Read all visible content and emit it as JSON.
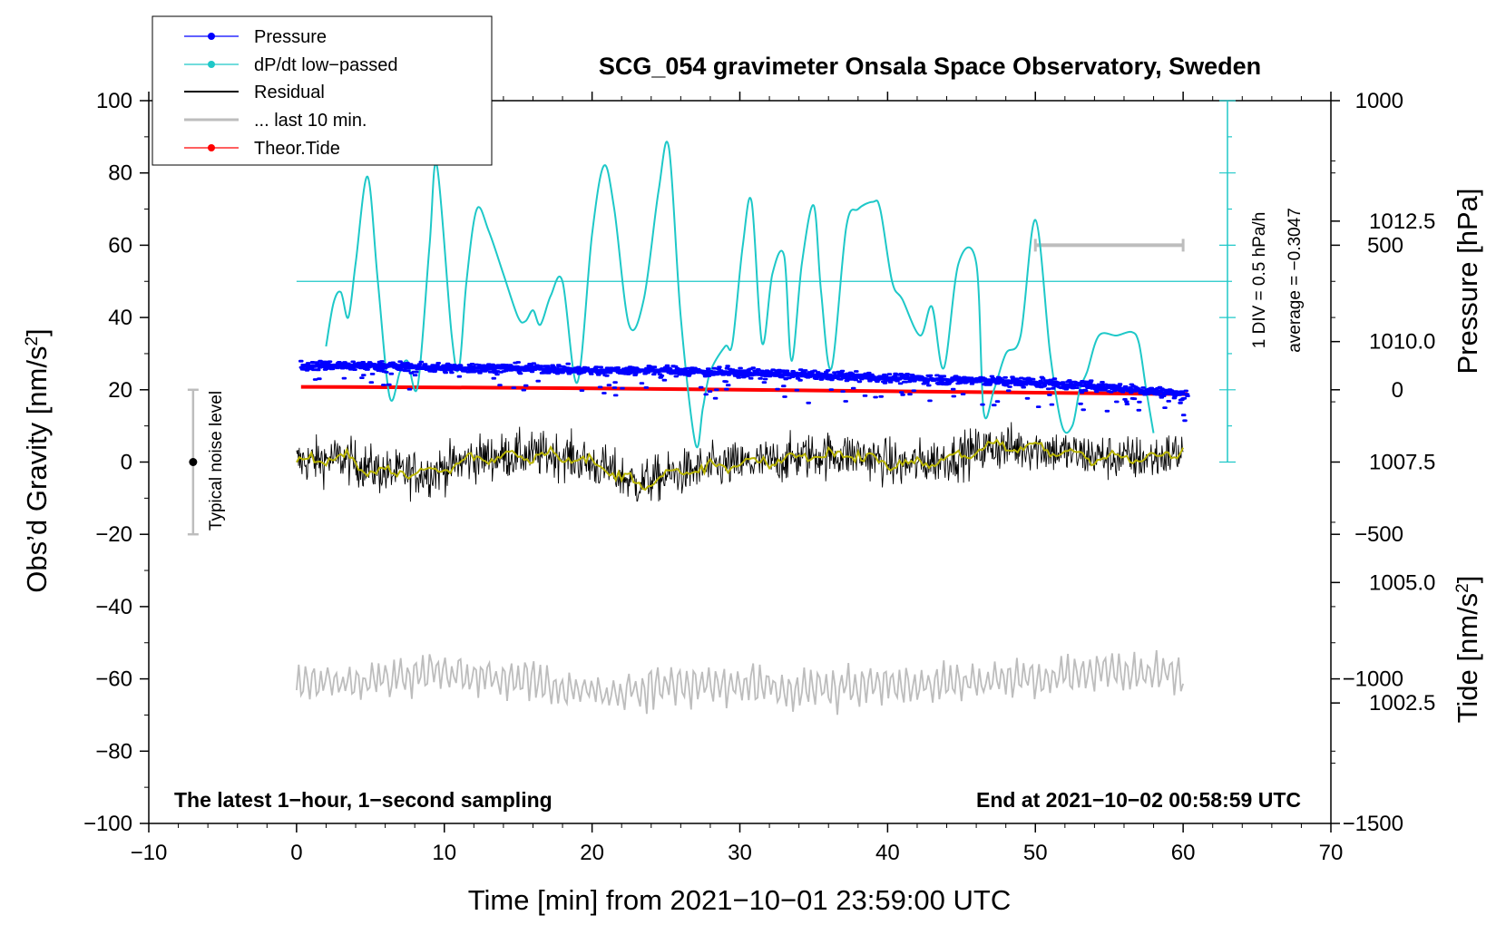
{
  "chart_data": {
    "type": "line",
    "title": "SCG_054 gravimeter Onsala Space Observatory, Sweden",
    "xlabel": "Time [min] from 2021−10−01 23:59:00 UTC",
    "ylabel_left_main": "Obs’d Gravity [nm/s",
    "ylabel_left_sup": "2",
    "ylabel_left_end": "]",
    "ylabel_pressure": "Pressure [hPa]",
    "ylabel_tide_main": "Tide [nm/s",
    "ylabel_tide_sup": "2",
    "ylabel_tide_end": "]",
    "xlim": [
      -10,
      70
    ],
    "ylim": [
      -100,
      100
    ],
    "pressure_lim": [
      1000,
      1015
    ],
    "tide_lim": [
      -1500,
      1000
    ],
    "x_ticks": [
      -10,
      0,
      10,
      20,
      30,
      40,
      50,
      60,
      70
    ],
    "x_tick_labels": [
      "−10",
      "0",
      "10",
      "20",
      "30",
      "40",
      "50",
      "60",
      "70"
    ],
    "y_ticks": [
      -100,
      -80,
      -60,
      -40,
      -20,
      0,
      20,
      40,
      60,
      80,
      100
    ],
    "y_tick_labels": [
      "−100",
      "−80",
      "−60",
      "−40",
      "−20",
      "0",
      "20",
      "40",
      "60",
      "80",
      "100"
    ],
    "pressure_ticks": [
      1002.5,
      1005.0,
      1007.5,
      1010.0,
      1012.5
    ],
    "pressure_tick_labels": [
      "1002.5",
      "1005.0",
      "1007.5",
      "1010.0",
      "1012.5"
    ],
    "tide_ticks": [
      -1500,
      -1000,
      -500,
      0,
      500,
      1000
    ],
    "tide_tick_labels": [
      "−1500",
      "−1000",
      "−500",
      "0",
      "500",
      "1000"
    ],
    "legend": {
      "position": "top-left",
      "entries": [
        {
          "label": "Pressure",
          "color": "#0000ff",
          "marker": true
        },
        {
          "label": "dP/dt low−passed",
          "color": "#1ec8c8",
          "marker": true
        },
        {
          "label": "Residual",
          "color": "#000000",
          "marker": false
        },
        {
          "label": "... last 10 min.",
          "color": "#bdbdbd",
          "marker": false
        },
        {
          "label": "Theor.Tide",
          "color": "#ff0000",
          "marker": true
        }
      ]
    },
    "annotations": {
      "bottom_left": "The latest 1−hour, 1−second sampling",
      "bottom_right": "End at 2021−10−02 00:58:59 UTC",
      "noise_label": "Typical noise level",
      "dpdt_scale": "1 DIV = 0.5 hPa/h",
      "dpdt_average": "average = −0.3047"
    },
    "noise_bar": {
      "x": -7,
      "center": 0,
      "half_range": 20
    },
    "series": [
      {
        "name": "Pressure",
        "axis": "pressure",
        "color": "#0000ff",
        "x": [
          0.3,
          5,
          10,
          15,
          20,
          25,
          30,
          35,
          40,
          45,
          50,
          55,
          60.3
        ],
        "values": [
          1009.5,
          1009.5,
          1009.45,
          1009.45,
          1009.4,
          1009.4,
          1009.35,
          1009.3,
          1009.25,
          1009.2,
          1009.15,
          1009.05,
          1008.9
        ]
      },
      {
        "name": "dP/dt low−passed",
        "axis": "left",
        "color": "#1ec8c8",
        "baseline": 50,
        "x": [
          2.0,
          2.5,
          3.0,
          3.5,
          4.0,
          4.8,
          5.5,
          6.3,
          7.0,
          7.5,
          8.2,
          9.0,
          9.5,
          10.5,
          11.0,
          11.5,
          12.2,
          13.0,
          14.0,
          15.0,
          15.5,
          16.0,
          16.5,
          17.2,
          18.0,
          19.0,
          20.0,
          20.8,
          21.5,
          22.5,
          23.5,
          24.5,
          25.2,
          26.0,
          27.0,
          27.5,
          28.0,
          29.0,
          29.5,
          30.2,
          30.8,
          31.5,
          32.2,
          33.0,
          33.5,
          34.2,
          35.0,
          35.5,
          36.2,
          37.2,
          38.0,
          39.0,
          39.5,
          40.3,
          41.0,
          42.2,
          43.0,
          43.8,
          44.8,
          46.0,
          46.5,
          47.2,
          48.0,
          49.0,
          50.0,
          51.0,
          51.8,
          52.5,
          53.0,
          53.5,
          54.3,
          55.5,
          56.5,
          57.0,
          57.5,
          58.0
        ],
        "values": [
          32,
          44,
          47,
          40,
          55,
          79,
          50,
          18,
          25,
          28,
          21,
          60,
          82,
          35,
          26,
          50,
          70,
          64,
          52,
          40,
          39,
          42,
          38,
          46,
          50,
          22,
          63,
          82,
          70,
          38,
          45,
          75,
          87,
          40,
          5,
          15,
          25,
          32,
          33,
          60,
          72,
          33,
          52,
          57,
          28,
          55,
          71,
          47,
          26,
          65,
          70,
          72,
          70,
          50,
          45,
          35,
          43,
          26,
          55,
          55,
          14,
          20,
          30,
          35,
          67,
          30,
          10,
          10,
          20,
          25,
          35,
          35,
          36,
          33,
          20,
          8
        ]
      },
      {
        "name": "Residual",
        "axis": "left",
        "color": "#000000",
        "smoothed_color": "#b8b400",
        "x": [
          0,
          3,
          6,
          9,
          12,
          15,
          18,
          21,
          23,
          26,
          29,
          32,
          35,
          38,
          41,
          44,
          47,
          50,
          53,
          56,
          58,
          60
        ],
        "values": [
          0,
          1,
          -3,
          -3,
          1,
          2,
          2,
          -2,
          -6,
          -3,
          -1,
          0,
          2,
          2,
          -1,
          1,
          4,
          4,
          2,
          1,
          1,
          3
        ]
      },
      {
        "name": "... last 10 min.",
        "axis": "left",
        "color": "#bdbdbd",
        "x": [
          0,
          5,
          10,
          15,
          20,
          25,
          30,
          35,
          40,
          45,
          50,
          55,
          60
        ],
        "values": [
          -62,
          -60,
          -58,
          -60,
          -64,
          -62,
          -62,
          -63,
          -62,
          -61,
          -60,
          -58,
          -58
        ]
      },
      {
        "name": "Theor.Tide",
        "axis": "tide",
        "color": "#ff0000",
        "x": [
          0.3,
          10,
          20,
          30,
          40,
          50,
          60.3
        ],
        "values": [
          10,
          8,
          5,
          0,
          -5,
          -10,
          -15
        ]
      }
    ],
    "last_10_min_bar": {
      "x_start": 50,
      "x_end": 60,
      "value": 500,
      "axis": "tide"
    }
  }
}
